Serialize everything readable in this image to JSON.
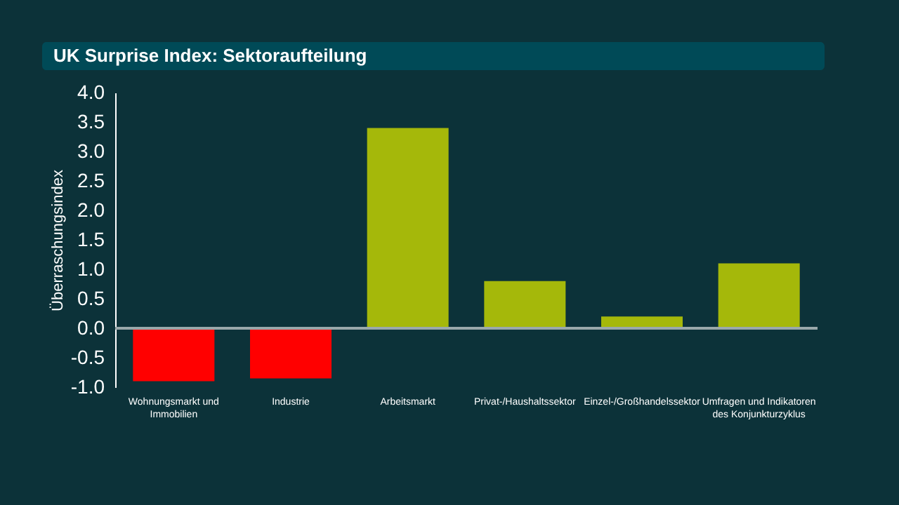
{
  "chart_data": {
    "type": "bar",
    "title": "UK Surprise Index: Sektoraufteilung",
    "ylabel": "Überraschungsindex",
    "categories": [
      "Wohnungsmarkt und Immobilien",
      "Industrie",
      "Arbeitsmarkt",
      "Privat-/Haushaltssektor",
      "Einzel-/Großhandelssektor",
      "Umfragen und Indikatoren des Konjunkturzyklus"
    ],
    "values": [
      -0.9,
      -0.85,
      3.4,
      0.8,
      0.2,
      1.1
    ],
    "colors": [
      "#ff0000",
      "#ff0000",
      "#a5b80a",
      "#a5b80a",
      "#a5b80a",
      "#a5b80a"
    ],
    "ylim": [
      -1.0,
      4.0
    ],
    "yticks": [
      {
        "value": -1,
        "label": "-1.0"
      },
      {
        "value": -0.5,
        "label": "-0.5"
      },
      {
        "value": 0,
        "label": "0.0"
      },
      {
        "value": 0.5,
        "label": "0.5"
      },
      {
        "value": 1,
        "label": "1.0"
      },
      {
        "value": 1.5,
        "label": "1.5"
      },
      {
        "value": 2,
        "label": "2.0"
      },
      {
        "value": 2.5,
        "label": "2.5"
      },
      {
        "value": 3,
        "label": "3.0"
      },
      {
        "value": 3.5,
        "label": "3.5"
      },
      {
        "value": 4,
        "label": "4.0"
      }
    ]
  }
}
